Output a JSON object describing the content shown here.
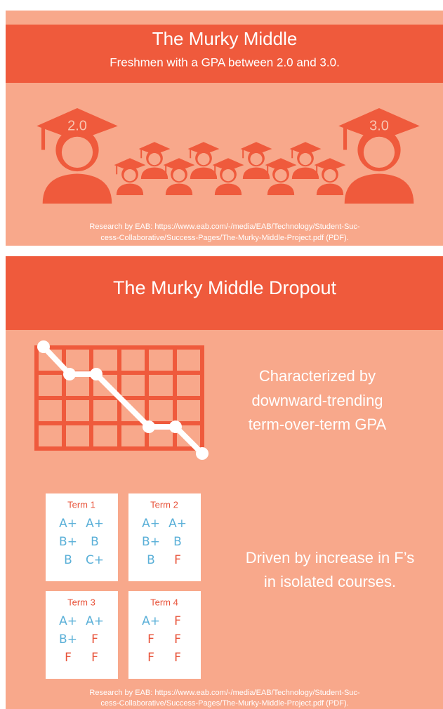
{
  "top_panel": {
    "title": "The Murky Middle",
    "subtitle": "Freshmen with a GPA between 2.0 and 3.0.",
    "icon_labels": [
      "2.0",
      "3.0"
    ],
    "source": [
      "Research by EAB: https://www.eab.com/-/media/EAB/Technology/Student-Suc-",
      "cess-Collaborative/Success-Pages/The-Murky-Middle-Project.pdf (PDF)."
    ]
  },
  "bottom_panel": {
    "title": "The Murky Middle Dropout",
    "trend_text": [
      "Characterized by",
      "downward-trending",
      "term-over-term GPA"
    ],
    "f_text": [
      "Driven by increase in F’s",
      "in isolated courses."
    ],
    "terms": [
      {
        "title": "Term 1",
        "grades": [
          "A+",
          "A+",
          "B+",
          "B",
          "B",
          "C+"
        ]
      },
      {
        "title": "Term 2",
        "grades": [
          "A+",
          "A+",
          "B+",
          "B",
          "B",
          "F"
        ]
      },
      {
        "title": "Term 3",
        "grades": [
          "A+",
          "A+",
          "B+",
          "F",
          "F",
          "F"
        ]
      },
      {
        "title": "Term 4",
        "grades": [
          "A+",
          "F",
          "F",
          "F",
          "F",
          "F"
        ]
      }
    ],
    "source": [
      "Research by EAB: https://www.eab.com/-/media/EAB/Technology/Student-Suc-",
      "cess-Collaborative/Success-Pages/The-Murky-Middle-Project.pdf (PDF)."
    ]
  }
}
